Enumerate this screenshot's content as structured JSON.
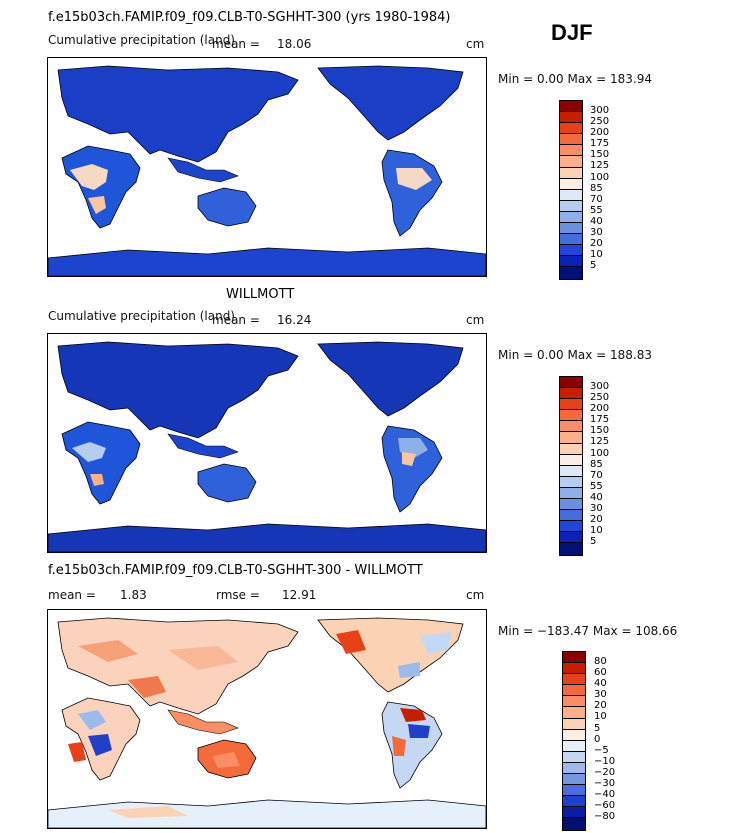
{
  "season": "DJF",
  "panels": [
    {
      "title": "f.e15b03ch.FAMIP.f09_f09.CLB-T0-SGHHT-300 (yrs 1980-1984)",
      "subtitle": "Cumulative precipitation (land)",
      "mean_label": "mean =",
      "mean_value": "18.06",
      "units": "cm",
      "minmax": "Min =   0.00 Max = 183.94",
      "colorbar": {
        "ticks": [
          "300",
          "250",
          "200",
          "175",
          "150",
          "125",
          "100",
          "85",
          "70",
          "55",
          "40",
          "30",
          "20",
          "10",
          "5"
        ],
        "colors": [
          "#8b0000",
          "#c81e00",
          "#e84118",
          "#f56a3b",
          "#f98d63",
          "#fbb089",
          "#fcd2b4",
          "#fdeee2",
          "#dde9f8",
          "#b5cdf0",
          "#8eb0e8",
          "#6a90e0",
          "#446de0",
          "#1f46d8",
          "#0a22b8",
          "#00107a"
        ]
      }
    },
    {
      "title": "WILLMOTT",
      "subtitle": "Cumulative precipitation (land)",
      "mean_label": "mean =",
      "mean_value": "16.24",
      "units": "cm",
      "minmax": "Min =   0.00 Max = 188.83",
      "colorbar": {
        "ticks": [
          "300",
          "250",
          "200",
          "175",
          "150",
          "125",
          "100",
          "85",
          "70",
          "55",
          "40",
          "30",
          "20",
          "10",
          "5"
        ],
        "colors": [
          "#8b0000",
          "#c81e00",
          "#e84118",
          "#f56a3b",
          "#f98d63",
          "#fbb089",
          "#fcd2b4",
          "#fdeee2",
          "#dde9f8",
          "#b5cdf0",
          "#8eb0e8",
          "#6a90e0",
          "#446de0",
          "#1f46d8",
          "#0a22b8",
          "#00107a"
        ]
      }
    },
    {
      "title": "f.e15b03ch.FAMIP.f09_f09.CLB-T0-SGHHT-300 - WILLMOTT",
      "mean_label": "mean =",
      "mean_value": "1.83",
      "rmse_label": "rmse =",
      "rmse_value": "12.91",
      "units": "cm",
      "minmax": "Min = −183.47 Max = 108.66",
      "colorbar": {
        "ticks": [
          "80",
          "60",
          "40",
          "30",
          "20",
          "10",
          "5",
          "0",
          "−5",
          "−10",
          "−20",
          "−30",
          "−40",
          "−60",
          "−80"
        ],
        "colors": [
          "#8b0000",
          "#c81e00",
          "#e84118",
          "#f56a3b",
          "#f98d63",
          "#fbb089",
          "#fcd2b4",
          "#fdeee2",
          "#e6f0fb",
          "#c5d8f3",
          "#9dbbea",
          "#7597e2",
          "#4a6fdc",
          "#2040cc",
          "#0a1ea0",
          "#001070"
        ]
      }
    }
  ]
}
